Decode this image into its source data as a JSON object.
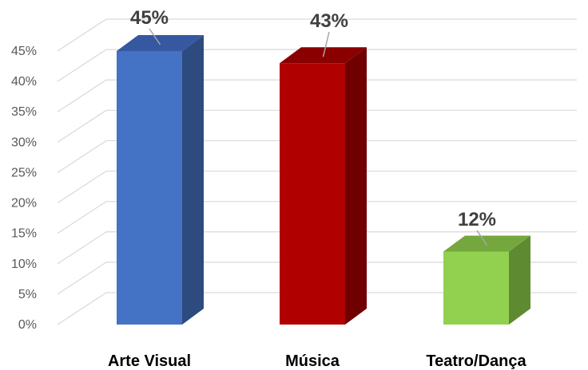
{
  "chart_data": {
    "type": "bar",
    "style": "3d-column",
    "categories": [
      "Arte Visual",
      "Música",
      "Teatro/Dança"
    ],
    "values": [
      45,
      43,
      12
    ],
    "data_labels": [
      "45%",
      "43%",
      "12%"
    ],
    "colors": [
      "#4472C4",
      "#B00000",
      "#92D050"
    ],
    "side_colors": [
      "#2E4B80",
      "#700000",
      "#5E8A32"
    ],
    "top_colors": [
      "#3558A0",
      "#8A0000",
      "#74A83E"
    ],
    "ylim": [
      0,
      45
    ],
    "y_ticks": [
      0,
      5,
      10,
      15,
      20,
      25,
      30,
      35,
      40,
      45
    ],
    "y_tick_labels": [
      "0%",
      "5%",
      "10%",
      "15%",
      "20%",
      "25%",
      "30%",
      "35%",
      "40%",
      "45%"
    ],
    "grid": true,
    "legend": "none",
    "title": "",
    "xlabel": "",
    "ylabel": ""
  }
}
